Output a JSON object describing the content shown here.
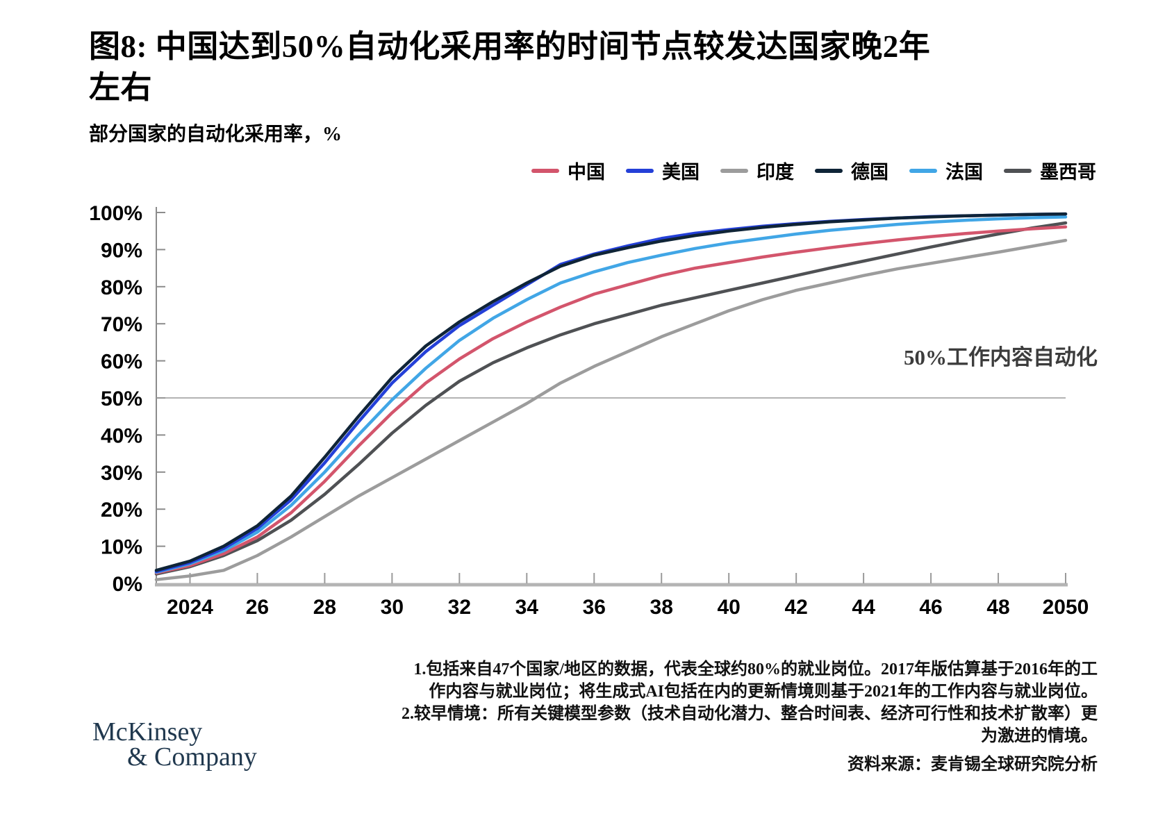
{
  "figure": {
    "title_line1": "图8: 中国达到50%自动化采用率的时间节点较发达国家晚2年",
    "title_line2": "左右",
    "subtitle": "部分国家的自动化采用率，%"
  },
  "chart_data": {
    "type": "line",
    "title": "图8: 中国达到50%自动化采用率的时间节点较发达国家晚2年左右",
    "subtitle": "部分国家的自动化采用率，%",
    "xlabel": "",
    "ylabel": "自动化采用率 %",
    "xlim": [
      2023,
      2050
    ],
    "ylim": [
      0,
      100
    ],
    "grid": "off (single horizontal reference line at 50%)",
    "legend_position": "top-right",
    "x": [
      2023,
      2024,
      2025,
      2026,
      2027,
      2028,
      2029,
      2030,
      2031,
      2032,
      2033,
      2034,
      2035,
      2036,
      2037,
      2038,
      2039,
      2040,
      2041,
      2042,
      2043,
      2044,
      2045,
      2046,
      2047,
      2048,
      2049,
      2050
    ],
    "x_tick_years": [
      2024,
      2026,
      2028,
      2030,
      2032,
      2034,
      2036,
      2038,
      2040,
      2042,
      2044,
      2046,
      2048,
      2050
    ],
    "x_tick_labels": [
      "2024",
      "26",
      "28",
      "30",
      "32",
      "34",
      "36",
      "38",
      "40",
      "42",
      "44",
      "46",
      "48",
      "2050"
    ],
    "y_tick_values": [
      0,
      10,
      20,
      30,
      40,
      50,
      60,
      70,
      80,
      90,
      100
    ],
    "y_tick_labels": [
      "0%",
      "10%",
      "20%",
      "30%",
      "40%",
      "50%",
      "60%",
      "70%",
      "80%",
      "90%",
      "100%"
    ],
    "threshold_line": {
      "value": 50,
      "label": "50%工作内容自动化"
    },
    "series": [
      {
        "key": "india",
        "name": "印度",
        "color": "#9c9c9c",
        "values": [
          1,
          2,
          3.5,
          7.5,
          12.5,
          18,
          23.5,
          28.5,
          33.5,
          38.5,
          43.5,
          48.5,
          54,
          58.5,
          62.5,
          66.5,
          70,
          73.5,
          76.5,
          79,
          81,
          83,
          84.8,
          86.3,
          87.8,
          89.3,
          90.9,
          92.5
        ]
      },
      {
        "key": "mexico",
        "name": "墨西哥",
        "color": "#4f5154",
        "values": [
          2.5,
          4.5,
          7.5,
          11.5,
          17,
          24,
          32,
          40.5,
          48,
          54.5,
          59.5,
          63.5,
          67,
          70,
          72.5,
          75,
          77,
          79,
          81,
          83,
          85,
          86.9,
          88.8,
          90.7,
          92.5,
          94.2,
          95.8,
          97.2
        ]
      },
      {
        "key": "china",
        "name": "中国",
        "color": "#d3556c",
        "values": [
          2.8,
          4.8,
          8,
          12.5,
          19,
          27.5,
          37,
          46,
          54,
          60.5,
          66,
          70.5,
          74.5,
          78,
          80.5,
          83,
          85,
          86.5,
          88,
          89.3,
          90.5,
          91.6,
          92.6,
          93.5,
          94.3,
          95,
          95.6,
          96.1
        ]
      },
      {
        "key": "france",
        "name": "法国",
        "color": "#41a6e6",
        "values": [
          3,
          5.3,
          8.8,
          13.8,
          21,
          30,
          40,
          49.5,
          58,
          65.5,
          71.5,
          76.5,
          81,
          84,
          86.5,
          88.5,
          90.3,
          91.8,
          93,
          94.2,
          95.2,
          96,
          96.8,
          97.4,
          97.9,
          98.3,
          98.6,
          98.8
        ]
      },
      {
        "key": "usa",
        "name": "美国",
        "color": "#2440d8",
        "values": [
          3.2,
          5.6,
          9.4,
          14.8,
          22.5,
          32.5,
          43.5,
          54,
          62.5,
          69.5,
          75,
          80.5,
          86,
          88.8,
          91,
          93,
          94.4,
          95.4,
          96.3,
          97,
          97.6,
          98.1,
          98.5,
          98.9,
          99.1,
          99.3,
          99.5,
          99.6
        ]
      },
      {
        "key": "germany",
        "name": "德国",
        "color": "#0f2437",
        "values": [
          3.5,
          6,
          10,
          15.5,
          23.5,
          34,
          45,
          55.5,
          64,
          70.5,
          76,
          81,
          85.5,
          88.5,
          90.5,
          92.3,
          93.8,
          95,
          96,
          96.8,
          97.5,
          98,
          98.5,
          98.8,
          99.1,
          99.3,
          99.5,
          99.6
        ]
      }
    ],
    "legend_order": [
      "中国",
      "美国",
      "印度",
      "德国",
      "法国",
      "墨西哥"
    ]
  },
  "footnotes": {
    "lines": [
      "1.包括来自47个国家/地区的数据，代表全球约80%的就业岗位。2017年版估算基于2016年的工",
      "作内容与就业岗位；将生成式AI包括在内的更新情境则基于2021年的工作内容与就业岗位。",
      "2.较早情境：所有关键模型参数（技术自动化潜力、整合时间表、经济可行性和技术扩散率）更",
      "为激进的情境。"
    ]
  },
  "source": "资料来源：麦肯锡全球研究院分析",
  "logo": {
    "line1": "McKinsey",
    "line2": "& Company"
  }
}
